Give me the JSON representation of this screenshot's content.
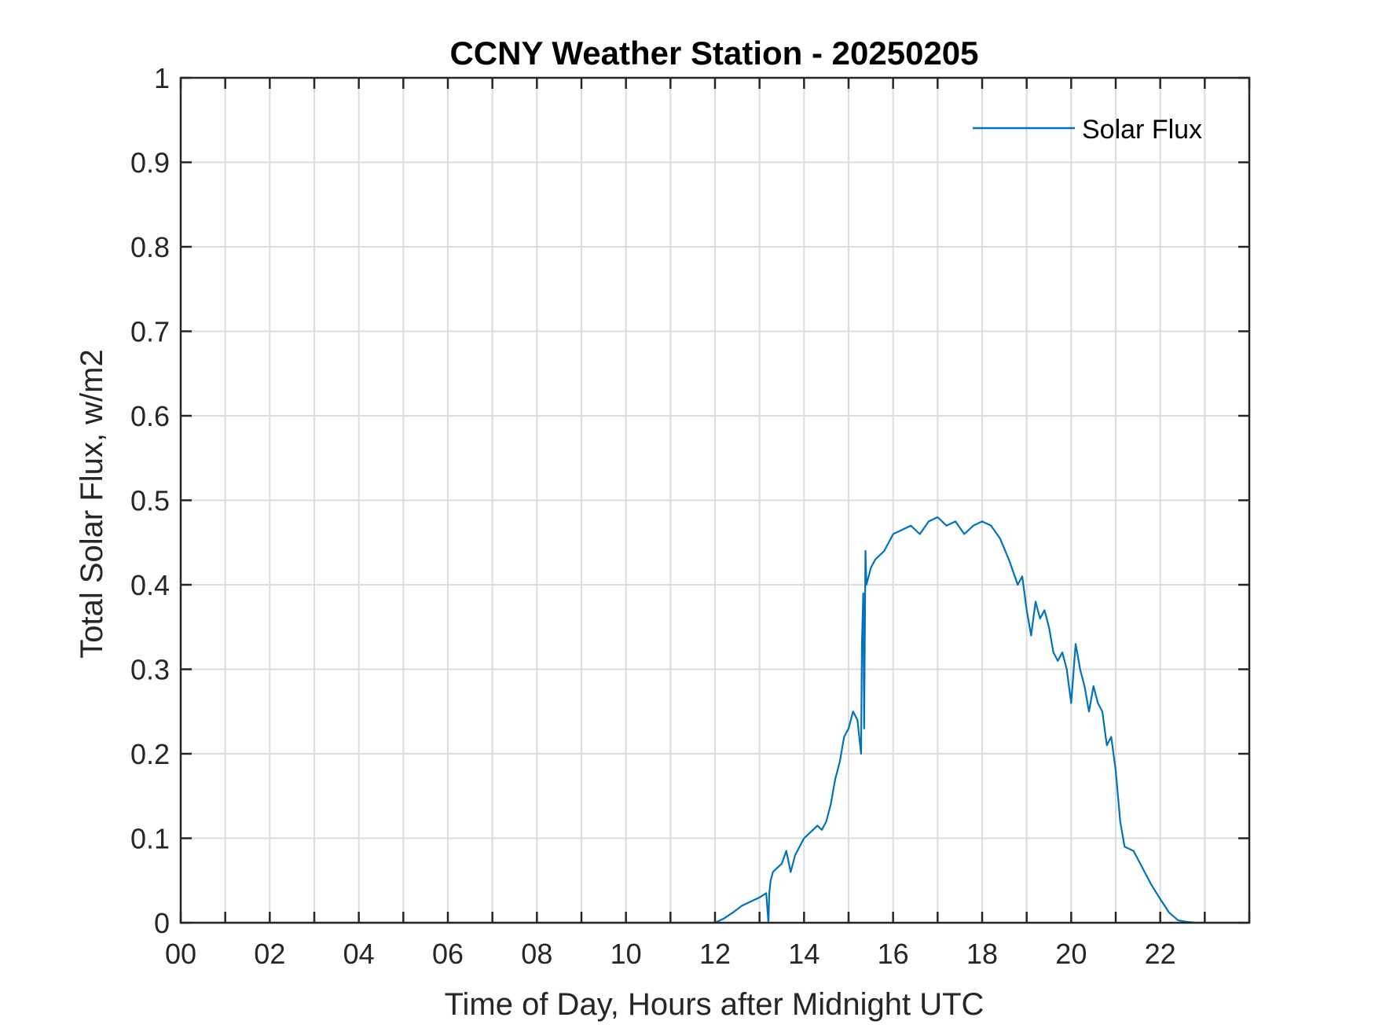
{
  "chart_data": {
    "type": "line",
    "title": "CCNY Weather Station - 20250205",
    "xlabel": "Time of Day, Hours after Midnight UTC",
    "ylabel": "Total Solar Flux, w/m2",
    "xlim": [
      0,
      24
    ],
    "ylim": [
      0,
      1
    ],
    "grid": true,
    "legend_position": "top-right",
    "x_tick_values": [
      0,
      2,
      4,
      6,
      8,
      10,
      12,
      14,
      16,
      18,
      20,
      22
    ],
    "x_tick_labels": [
      "00",
      "02",
      "04",
      "06",
      "08",
      "10",
      "12",
      "14",
      "16",
      "18",
      "20",
      "22"
    ],
    "y_tick_values": [
      0,
      0.1,
      0.2,
      0.3,
      0.4,
      0.5,
      0.6,
      0.7,
      0.8,
      0.9,
      1
    ],
    "y_tick_labels": [
      "0",
      "0.1",
      "0.2",
      "0.3",
      "0.4",
      "0.5",
      "0.6",
      "0.7",
      "0.8",
      "0.9",
      "1"
    ],
    "colors": {
      "series": "#0072BD",
      "axis": "#262626",
      "grid": "#dcdcdc"
    },
    "series": [
      {
        "name": "Solar Flux",
        "x": [
          0,
          12.0,
          12.2,
          12.4,
          12.6,
          12.8,
          13.0,
          13.15,
          13.2,
          13.22,
          13.25,
          13.3,
          13.4,
          13.5,
          13.6,
          13.7,
          13.8,
          14.0,
          14.2,
          14.3,
          14.4,
          14.5,
          14.6,
          14.7,
          14.8,
          14.9,
          15.0,
          15.1,
          15.2,
          15.28,
          15.3,
          15.33,
          15.35,
          15.38,
          15.4,
          15.45,
          15.5,
          15.6,
          15.8,
          16.0,
          16.2,
          16.4,
          16.6,
          16.8,
          17.0,
          17.2,
          17.4,
          17.6,
          17.8,
          18.0,
          18.2,
          18.4,
          18.6,
          18.8,
          18.9,
          19.0,
          19.1,
          19.2,
          19.3,
          19.4,
          19.5,
          19.6,
          19.7,
          19.8,
          19.9,
          20.0,
          20.1,
          20.2,
          20.3,
          20.4,
          20.5,
          20.6,
          20.7,
          20.8,
          20.9,
          21.0,
          21.1,
          21.2,
          21.4,
          21.6,
          21.8,
          22.0,
          22.2,
          22.4,
          22.6,
          22.8,
          23.0,
          24.0
        ],
        "y": [
          0,
          0,
          0.005,
          0.012,
          0.02,
          0.025,
          0.03,
          0.035,
          0.0,
          0.035,
          0.05,
          0.06,
          0.065,
          0.07,
          0.085,
          0.06,
          0.08,
          0.1,
          0.11,
          0.115,
          0.11,
          0.12,
          0.14,
          0.17,
          0.19,
          0.22,
          0.23,
          0.25,
          0.24,
          0.2,
          0.33,
          0.39,
          0.23,
          0.44,
          0.4,
          0.41,
          0.42,
          0.43,
          0.44,
          0.46,
          0.465,
          0.47,
          0.46,
          0.475,
          0.48,
          0.47,
          0.475,
          0.46,
          0.47,
          0.475,
          0.47,
          0.455,
          0.43,
          0.4,
          0.41,
          0.37,
          0.34,
          0.38,
          0.36,
          0.37,
          0.35,
          0.32,
          0.31,
          0.32,
          0.3,
          0.26,
          0.33,
          0.3,
          0.28,
          0.25,
          0.28,
          0.26,
          0.25,
          0.21,
          0.22,
          0.18,
          0.12,
          0.09,
          0.085,
          0.065,
          0.045,
          0.028,
          0.012,
          0.003,
          0.001,
          0,
          0,
          0
        ]
      }
    ]
  }
}
